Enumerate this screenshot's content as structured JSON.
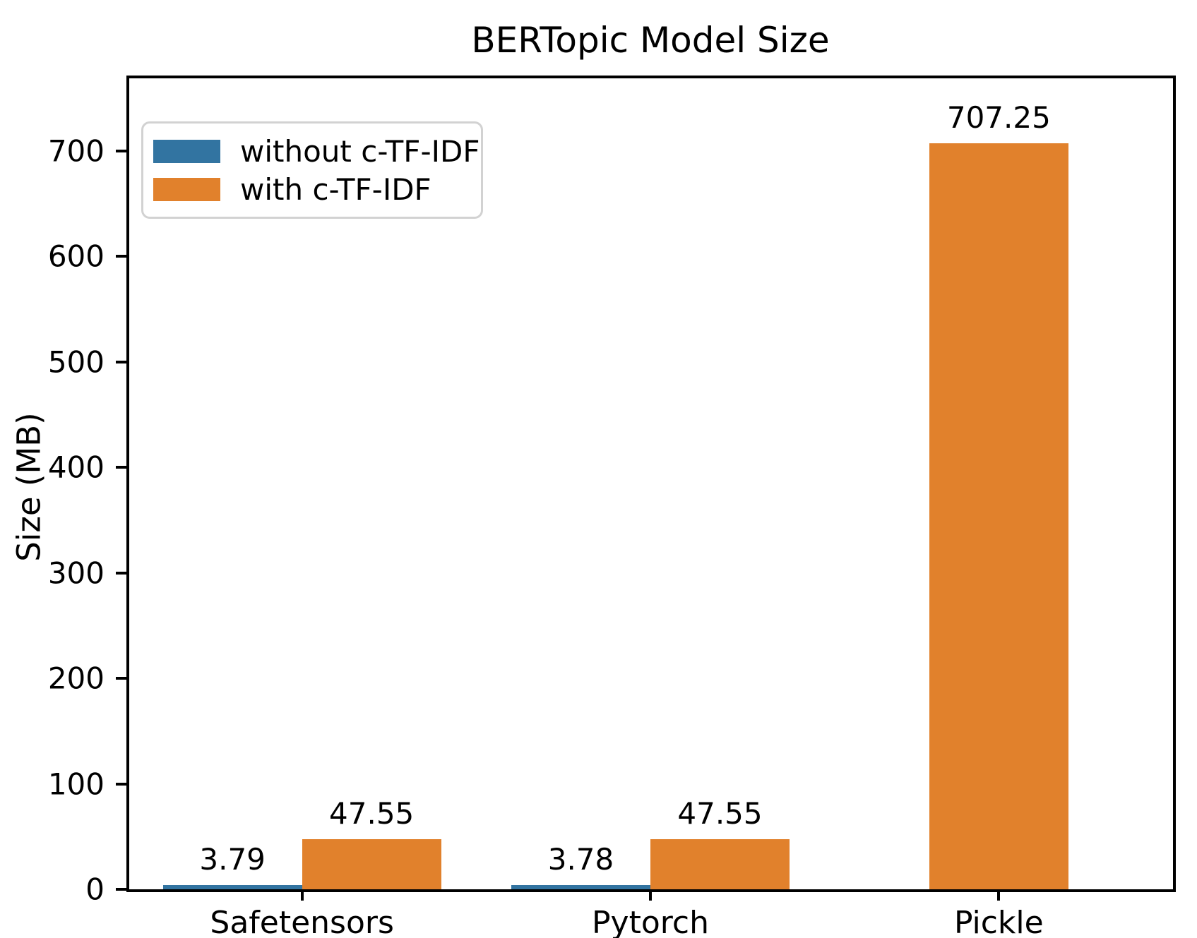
{
  "figure": {
    "background": "#ffffff",
    "spine_color": "#000000"
  },
  "legend": {
    "position": "upper left",
    "items": [
      {
        "label": "without c-TF-IDF",
        "color": "#3274a1"
      },
      {
        "label": "with c-TF-IDF",
        "color": "#e1812c"
      }
    ]
  },
  "chart_data": {
    "type": "bar",
    "title": "BERTopic Model Size",
    "xlabel": "",
    "ylabel": "Size (MB)",
    "categories": [
      "Safetensors",
      "Pytorch",
      "Pickle"
    ],
    "series": [
      {
        "name": "without c-TF-IDF",
        "color": "#3274a1",
        "values": [
          3.79,
          3.78,
          null
        ],
        "labels": [
          "3.79",
          "3.78",
          null
        ]
      },
      {
        "name": "with c-TF-IDF",
        "color": "#e1812c",
        "values": [
          47.55,
          47.55,
          707.25
        ],
        "labels": [
          "47.55",
          "47.55",
          "707.25"
        ]
      }
    ],
    "ylim": [
      0,
      770
    ],
    "yticks": [
      0,
      100,
      200,
      300,
      400,
      500,
      600,
      700
    ],
    "grid": false,
    "legend_position": "upper left",
    "bar_value_labels_shown": true
  }
}
